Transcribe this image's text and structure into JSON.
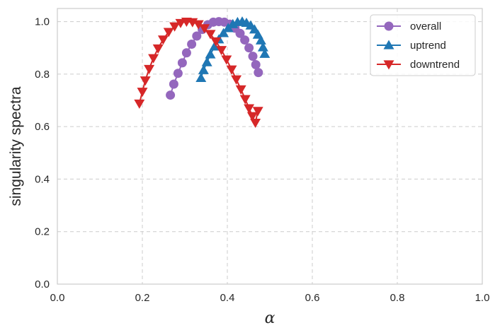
{
  "chart_data": {
    "type": "line",
    "title": "",
    "xlabel": "α",
    "ylabel": "singularity spectra",
    "xlim": [
      0.0,
      1.0
    ],
    "ylim": [
      0.0,
      1.05
    ],
    "xticks": [
      "0.0",
      "0.2",
      "0.4",
      "0.6",
      "0.8",
      "1.0"
    ],
    "yticks": [
      "0.0",
      "0.2",
      "0.4",
      "0.6",
      "0.8",
      "1.0"
    ],
    "grid": true,
    "legend_position": "top-right",
    "series": [
      {
        "name": "overall",
        "color": "#9467bd",
        "marker": "circle",
        "x": [
          0.266,
          0.274,
          0.284,
          0.294,
          0.304,
          0.316,
          0.328,
          0.341,
          0.354,
          0.367,
          0.38,
          0.393,
          0.406,
          0.418,
          0.43,
          0.441,
          0.451,
          0.46,
          0.467,
          0.473
        ],
        "y": [
          0.72,
          0.762,
          0.803,
          0.843,
          0.881,
          0.914,
          0.945,
          0.97,
          0.988,
          0.998,
          1.0,
          0.998,
          0.99,
          0.975,
          0.955,
          0.93,
          0.9,
          0.868,
          0.836,
          0.806
        ]
      },
      {
        "name": "uptrend",
        "color": "#1f77b4",
        "marker": "triangle-up",
        "x": [
          0.338,
          0.344,
          0.352,
          0.36,
          0.37,
          0.38,
          0.391,
          0.402,
          0.413,
          0.424,
          0.435,
          0.445,
          0.455,
          0.464,
          0.472,
          0.479,
          0.484,
          0.488
        ],
        "y": [
          0.785,
          0.815,
          0.845,
          0.875,
          0.905,
          0.932,
          0.956,
          0.975,
          0.99,
          0.998,
          1.0,
          0.995,
          0.985,
          0.97,
          0.95,
          0.928,
          0.902,
          0.877
        ]
      },
      {
        "name": "downtrend",
        "color": "#d62728",
        "marker": "triangle-down",
        "x": [
          0.193,
          0.2,
          0.207,
          0.216,
          0.226,
          0.237,
          0.249,
          0.262,
          0.276,
          0.29,
          0.304,
          0.318,
          0.332,
          0.346,
          0.36,
          0.373,
          0.386,
          0.398,
          0.41,
          0.421,
          0.432,
          0.442,
          0.451,
          0.459,
          0.466,
          0.472
        ],
        "y": [
          0.688,
          0.733,
          0.776,
          0.82,
          0.861,
          0.898,
          0.932,
          0.961,
          0.982,
          0.995,
          1.0,
          0.998,
          0.99,
          0.975,
          0.953,
          0.925,
          0.892,
          0.856,
          0.818,
          0.78,
          0.742,
          0.705,
          0.67,
          0.64,
          0.615,
          0.66
        ]
      }
    ]
  }
}
